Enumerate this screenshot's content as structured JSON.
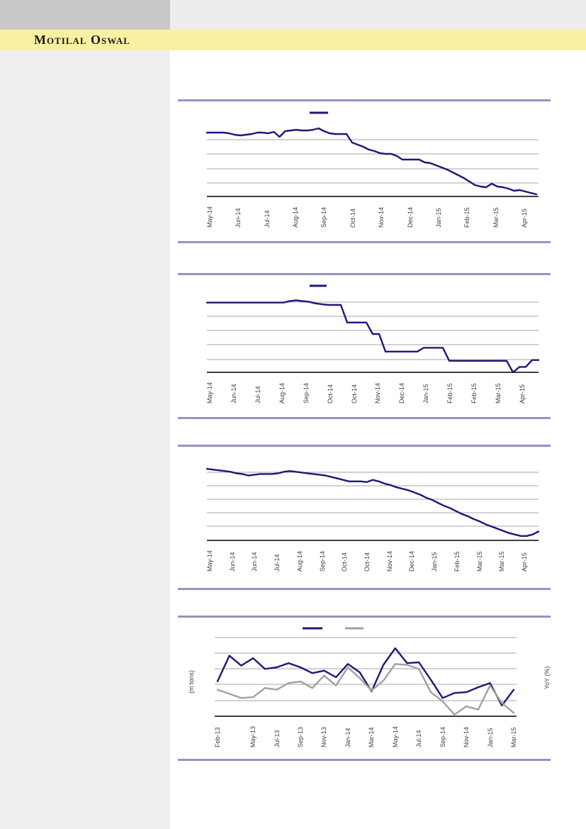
{
  "header": {
    "brand": "Motilal Oswal"
  },
  "colors": {
    "brand_band_yellow": "#FAF0A2",
    "brand_text": "#1A1A1A",
    "panel_rule_purple": "#9792C6",
    "series_navy": "#1A1A78",
    "series_gray": "#A0A0A0",
    "gridline_gray": "#A6A6A6",
    "axis_black": "#000000",
    "tick_label_gray": "#3F3F3F",
    "sidebar_gray": "#EFEFEF",
    "header_block_gray": "#C9C9C9",
    "header_strip_gray": "#EDEDED"
  },
  "chart_data": [
    {
      "type": "line",
      "title": "",
      "x_labels": [
        "May-14",
        "Jun-14",
        "Jul-14",
        "Aug-14",
        "Sep-14",
        "Oct-14",
        "Nov-14",
        "Dec-14",
        "Jan-15",
        "Feb-15",
        "Mar-15",
        "Apr-15"
      ],
      "xlabel": "",
      "ylabel": "",
      "ylim": [
        0,
        100
      ],
      "grid": "horizontal",
      "legend_position": "top-center",
      "y_tick_labels_visible": false,
      "series": [
        {
          "name": "",
          "color": "#1A1A78",
          "values": [
            90,
            90,
            90,
            90,
            89,
            87,
            86,
            87,
            88,
            90,
            90,
            89,
            91,
            84,
            92,
            93,
            94,
            93,
            93,
            94,
            96,
            92,
            89,
            88,
            88,
            88,
            76,
            73,
            70,
            66,
            64,
            61,
            60,
            60,
            57,
            52,
            52,
            52,
            52,
            48,
            47,
            44,
            41,
            38,
            34,
            30,
            26,
            21,
            16,
            14,
            13,
            18,
            14,
            13,
            11,
            8,
            9,
            7,
            5,
            3
          ]
        }
      ]
    },
    {
      "type": "line",
      "title": "",
      "x_labels": [
        "May-14",
        "Jun-14",
        "Jul-14",
        "Aug-14",
        "Sep-14",
        "Oct-14",
        "Oct-14",
        "Nov-14",
        "Dec-14",
        "Jan-15",
        "Feb-15",
        "Feb-15",
        "Mar-15",
        "Apr-15"
      ],
      "xlabel": "",
      "ylabel": "",
      "ylim": [
        0,
        100
      ],
      "grid": "horizontal",
      "legend_position": "top-center",
      "y_tick_labels_visible": false,
      "series": [
        {
          "name": "",
          "color": "#1A1A78",
          "values": [
            91,
            91,
            91,
            91,
            91,
            91,
            91,
            91,
            91,
            91,
            91,
            91,
            91,
            93,
            94,
            93,
            92,
            90,
            89,
            88,
            88,
            88,
            65,
            65,
            65,
            65,
            50,
            50,
            27,
            27,
            27,
            27,
            27,
            27,
            32,
            32,
            32,
            32,
            15,
            15,
            15,
            15,
            15,
            15,
            15,
            15,
            15,
            15,
            0,
            7,
            7,
            16,
            16
          ]
        }
      ]
    },
    {
      "type": "line",
      "title": "",
      "x_labels": [
        "May-14",
        "Jun-14",
        "Jun-14",
        "Jul-14",
        "Aug-14",
        "Sep-14",
        "Oct-14",
        "Oct-14",
        "Nov-14",
        "Dec-14",
        "Jan-15",
        "Feb-15",
        "Mar-15",
        "Mar-15",
        "Apr-15"
      ],
      "xlabel": "",
      "ylabel": "",
      "ylim": [
        0,
        100
      ],
      "grid": "horizontal",
      "legend_position": "none",
      "y_tick_labels_visible": false,
      "series": [
        {
          "name": "",
          "color": "#1A1A78",
          "values": [
            97,
            96,
            95,
            94,
            93,
            91,
            90,
            88,
            89,
            90,
            90,
            90,
            91,
            93,
            94,
            93,
            92,
            91,
            90,
            89,
            88,
            86,
            84,
            82,
            80,
            80,
            80,
            79,
            82,
            80,
            77,
            75,
            72,
            70,
            68,
            65,
            62,
            58,
            55,
            51,
            47,
            44,
            40,
            36,
            33,
            29,
            26,
            22,
            19,
            16,
            13,
            10,
            8,
            6,
            6,
            8,
            12
          ]
        }
      ]
    },
    {
      "type": "line",
      "title": "",
      "categories": [
        "Feb-13",
        "Mar-13",
        "Apr-13",
        "May-13",
        "Jun-13",
        "Jul-13",
        "Aug-13",
        "Sep-13",
        "Oct-13",
        "Nov-13",
        "Dec-13",
        "Jan-14",
        "Feb-14",
        "Mar-14",
        "Apr-14",
        "May-14",
        "Jun-14",
        "Jul-14",
        "Aug-14",
        "Sep-14",
        "Oct-14",
        "Nov-14",
        "Dec-14",
        "Jan-15",
        "Feb-15",
        "Mar-15"
      ],
      "x_labels": [
        "Feb-13",
        "May-13",
        "Jul-13",
        "Sep-13",
        "Nov-13",
        "Jan-14",
        "Mar-14",
        "May-14",
        "Jul-14",
        "Sep-14",
        "Nov-14",
        "Jan-15",
        "Mar-15"
      ],
      "x_label_indices": [
        0,
        3,
        5,
        7,
        9,
        11,
        13,
        15,
        17,
        19,
        21,
        23,
        25
      ],
      "xlabel": "",
      "ylabel_left": "(m tons)",
      "ylabel_right": "YoY (%)",
      "ylim": [
        0,
        100
      ],
      "grid": "horizontal",
      "legend_position": "top-center",
      "y_tick_labels_visible": false,
      "series": [
        {
          "name": "",
          "color": "#1A1A78",
          "values": [
            42,
            73,
            61,
            70,
            57,
            59,
            64,
            59,
            52,
            55,
            47,
            63,
            53,
            30,
            62,
            82,
            64,
            65,
            44,
            22,
            28,
            29,
            35,
            40,
            13,
            32
          ]
        },
        {
          "name": "",
          "color": "#A0A0A0",
          "values": [
            32,
            27,
            22,
            23,
            34,
            32,
            40,
            42,
            34,
            49,
            37,
            59,
            46,
            31,
            43,
            63,
            62,
            57,
            29,
            18,
            2,
            12,
            8,
            37,
            16,
            4
          ]
        }
      ]
    }
  ]
}
